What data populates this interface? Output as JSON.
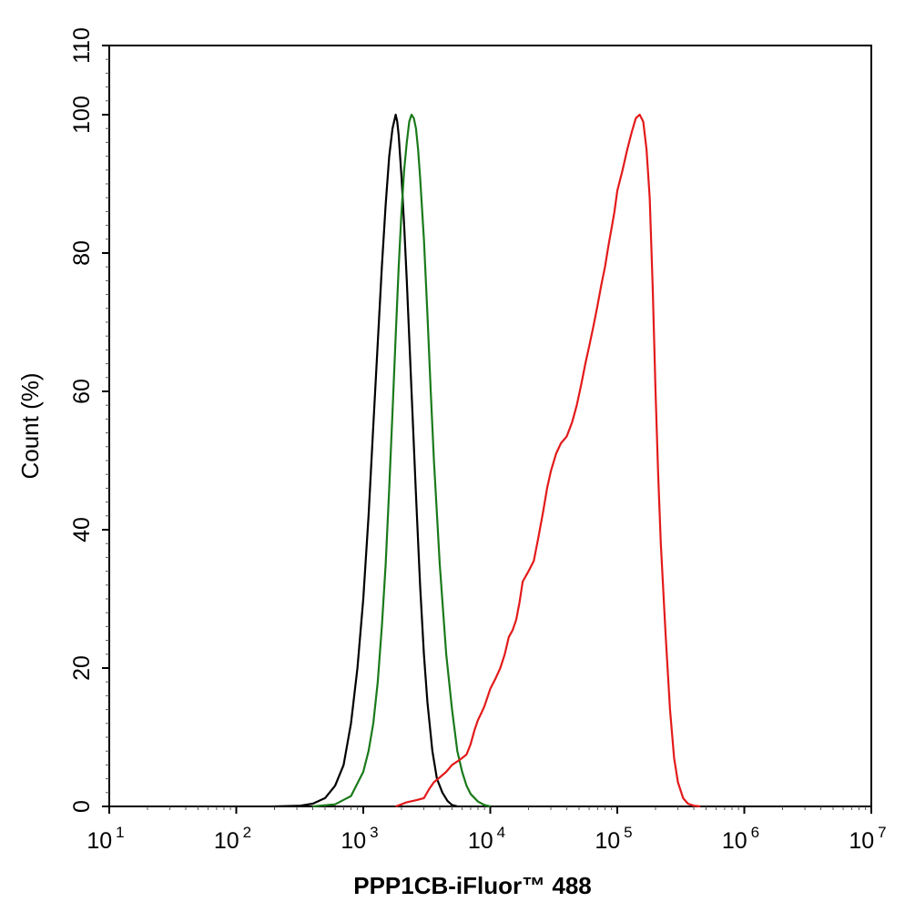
{
  "chart_data": {
    "type": "line",
    "title": "",
    "xlabel": "PPP1CB-iFluor™ 488",
    "ylabel": "Count (%)",
    "x_scale": "log",
    "xlim": [
      10,
      10000000
    ],
    "ylim": [
      0,
      110
    ],
    "x_ticks": [
      {
        "base": "10",
        "exp": "1",
        "value": 10
      },
      {
        "base": "10",
        "exp": "2",
        "value": 100
      },
      {
        "base": "10",
        "exp": "3",
        "value": 1000
      },
      {
        "base": "10",
        "exp": "4",
        "value": 10000
      },
      {
        "base": "10",
        "exp": "5",
        "value": 100000
      },
      {
        "base": "10",
        "exp": "6",
        "value": 1000000
      },
      {
        "base": "10",
        "exp": "7",
        "value": 10000000
      }
    ],
    "y_ticks": [
      "0",
      "20",
      "40",
      "60",
      "80",
      "100",
      "110"
    ],
    "grid": false,
    "legend": "none",
    "series": [
      {
        "color": "#000000",
        "x": [
          200,
          320,
          400,
          500,
          600,
          700,
          800,
          900,
          1000,
          1100,
          1200,
          1300,
          1400,
          1500,
          1600,
          1700,
          1800,
          1850,
          1900,
          2000,
          2100,
          2200,
          2400,
          2600,
          2800,
          3000,
          3200,
          3500,
          3800,
          4200,
          4600,
          5000,
          5500
        ],
        "y": [
          0,
          0.1,
          0.4,
          1.2,
          3,
          6,
          12,
          20,
          30,
          42,
          55,
          67,
          78,
          87,
          94,
          98,
          100,
          99,
          97,
          91,
          84,
          76,
          60,
          45,
          32,
          22,
          15,
          8,
          4,
          2,
          0.8,
          0.2,
          0
        ]
      },
      {
        "color": "#1a7a1a",
        "x": [
          400,
          600,
          800,
          1000,
          1100,
          1200,
          1300,
          1400,
          1500,
          1600,
          1700,
          1800,
          1900,
          2000,
          2100,
          2200,
          2300,
          2400,
          2500,
          2600,
          2700,
          2800,
          3000,
          3200,
          3400,
          3600,
          4000,
          4500,
          5000,
          5500,
          6000,
          6500,
          7000,
          8000,
          9000,
          10000
        ],
        "y": [
          0,
          0.3,
          1.5,
          5,
          8,
          12,
          18,
          26,
          35,
          46,
          57,
          68,
          78,
          86,
          92,
          96,
          99,
          100,
          99.5,
          98,
          95,
          91,
          82,
          71,
          60,
          50,
          35,
          22,
          14,
          8,
          5,
          3,
          1.8,
          0.7,
          0.2,
          0
        ]
      },
      {
        "color": "#e31a1a",
        "x": [
          1800,
          2000,
          2200,
          2600,
          3000,
          3300,
          3600,
          4000,
          4500,
          5000,
          5500,
          6000,
          6500,
          7000,
          7500,
          8000,
          8500,
          9000,
          10000,
          11000,
          12000,
          13000,
          14000,
          15000,
          16000,
          17000,
          18000,
          20000,
          22000,
          24000,
          26000,
          28000,
          30000,
          33000,
          36000,
          40000,
          44000,
          48000,
          52000,
          56000,
          60000,
          65000,
          70000,
          75000,
          80000,
          85000,
          90000,
          95000,
          100000,
          110000,
          120000,
          130000,
          140000,
          150000,
          160000,
          170000,
          180000,
          190000,
          200000,
          210000,
          220000,
          240000,
          260000,
          280000,
          300000,
          330000,
          360000,
          400000,
          450000
        ],
        "y": [
          0,
          0.3,
          0.6,
          0.9,
          1.2,
          2.5,
          3.5,
          4.2,
          5,
          6,
          6.5,
          7,
          7.5,
          9,
          11,
          12.5,
          13.5,
          14.5,
          17,
          18.5,
          20,
          22,
          24.5,
          25.5,
          27,
          29.5,
          32.5,
          34,
          35.5,
          39,
          42.5,
          46,
          48.5,
          51,
          52.5,
          53.5,
          55.5,
          58,
          61,
          64,
          66.5,
          69.5,
          72.5,
          75.5,
          78,
          81,
          83.5,
          86,
          89,
          92,
          95,
          97.5,
          99.5,
          100,
          99,
          95,
          88,
          75,
          60,
          48,
          38,
          25,
          14,
          7,
          3.5,
          1.2,
          0.4,
          0.1,
          0
        ]
      }
    ]
  }
}
